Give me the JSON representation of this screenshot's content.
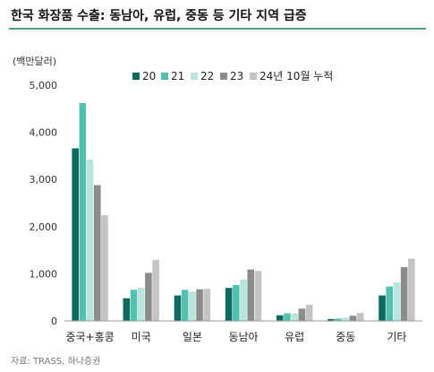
{
  "chart_data": {
    "type": "bar",
    "title": "한국 화장품 수출: 동남아, 유럽, 중동 등 기타 지역 급증",
    "ylabel": "(백만달러)",
    "ylim": [
      0,
      5000
    ],
    "yticks": [
      "0",
      "1,000",
      "2,000",
      "3,000",
      "4,000",
      "5,000"
    ],
    "ytick_values": [
      0,
      1000,
      2000,
      3000,
      4000,
      5000
    ],
    "grid": false,
    "legend_position": "top",
    "categories": [
      "중국+홍콩",
      "미국",
      "일본",
      "동남아",
      "유럽",
      "중동",
      "기타"
    ],
    "series": [
      {
        "name": "20",
        "color": "#0e6a5c",
        "values": [
          3660,
          480,
          540,
          700,
          120,
          40,
          540
        ]
      },
      {
        "name": "21",
        "color": "#52c1b0",
        "values": [
          4620,
          660,
          660,
          760,
          160,
          50,
          730
        ]
      },
      {
        "name": "22",
        "color": "#b8e6de",
        "values": [
          3420,
          700,
          620,
          880,
          160,
          70,
          820
        ]
      },
      {
        "name": "23",
        "color": "#8c8c8c",
        "values": [
          2880,
          1020,
          670,
          1090,
          260,
          110,
          1140
        ]
      },
      {
        "name": "24년 10월 누적",
        "color": "#c4c4c4",
        "values": [
          2240,
          1290,
          680,
          1060,
          340,
          170,
          1320
        ]
      }
    ],
    "source": "자료: TRASS, 하나증권"
  }
}
